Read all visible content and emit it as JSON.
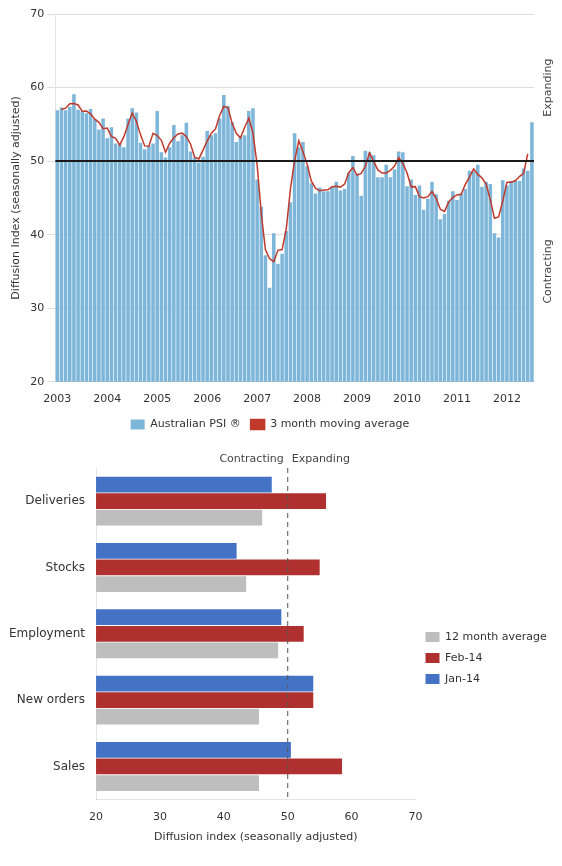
{
  "chart_data": [
    {
      "type": "bar",
      "ylabel": "Diffusion Index (seasonally adjusted)",
      "categories": [
        "2003",
        null,
        null,
        null,
        null,
        null,
        null,
        null,
        null,
        null,
        null,
        null,
        "2004",
        null,
        null,
        null,
        null,
        null,
        null,
        null,
        null,
        null,
        null,
        null,
        "2005",
        null,
        null,
        null,
        null,
        null,
        null,
        null,
        null,
        null,
        null,
        null,
        "2006",
        null,
        null,
        null,
        null,
        null,
        null,
        null,
        null,
        null,
        null,
        null,
        "2007",
        null,
        null,
        null,
        null,
        null,
        null,
        null,
        null,
        null,
        null,
        null,
        "2008",
        null,
        null,
        null,
        null,
        null,
        null,
        null,
        null,
        null,
        null,
        null,
        "2009",
        null,
        null,
        null,
        null,
        null,
        null,
        null,
        null,
        null,
        null,
        null,
        "2010",
        null,
        null,
        null,
        null,
        null,
        null,
        null,
        null,
        null,
        null,
        null,
        "2011",
        null,
        null,
        null,
        null,
        null,
        null,
        null,
        null,
        null,
        null,
        null,
        "2012",
        null,
        null,
        null,
        null,
        null,
        null
      ],
      "series": [
        {
          "name": "Australian PSI ®",
          "type": "bar",
          "color": "#7EB6D9",
          "values": [
            56.9,
            57.3,
            56.9,
            57.4,
            59.1,
            57.0,
            56.8,
            56.5,
            57.1,
            55.7,
            54.3,
            55.8,
            53.1,
            54.6,
            52.4,
            52.3,
            51.9,
            55.8,
            57.2,
            56.6,
            52.5,
            51.6,
            52.1,
            52.4,
            56.8,
            51.2,
            50.5,
            51.9,
            54.9,
            52.7,
            53.5,
            55.2,
            51.3,
            50.5,
            49.8,
            50.6,
            54.1,
            53.5,
            53.8,
            55.8,
            59.0,
            57.5,
            55.3,
            52.6,
            53.4,
            53.5,
            56.8,
            57.2,
            47.5,
            43.8,
            37.2,
            32.8,
            40.2,
            36.0,
            37.4,
            40.5,
            44.4,
            53.8,
            51.9,
            52.6,
            49.3,
            47.0,
            45.6,
            46.4,
            45.9,
            45.9,
            46.5,
            47.2,
            46.0,
            46.2,
            48.4,
            50.7,
            48.3,
            45.3,
            51.4,
            51.2,
            50.8,
            47.8,
            47.8,
            49.5,
            47.8,
            48.9,
            51.3,
            51.2,
            46.6,
            47.5,
            45.4,
            46.7,
            43.4,
            44.9,
            47.2,
            45.5,
            42.1,
            42.8,
            44.6,
            45.9,
            44.7,
            45.6,
            46.2,
            48.7,
            48.6,
            49.5,
            46.5,
            47.2,
            46.9,
            40.2,
            39.6,
            47.4,
            46.7,
            47.3,
            47.4,
            47.3,
            49.0,
            48.7,
            55.3
          ]
        },
        {
          "name": "3 month moving average",
          "type": "line",
          "color": "#C0392B",
          "values": [
            null,
            57.03,
            57.2,
            57.8,
            57.83,
            57.63,
            56.77,
            56.8,
            56.43,
            55.7,
            55.27,
            54.4,
            54.5,
            53.37,
            53.1,
            52.2,
            53.33,
            54.97,
            56.53,
            55.43,
            53.57,
            52.07,
            52.03,
            53.77,
            53.47,
            52.83,
            51.2,
            52.43,
            53.17,
            53.7,
            53.8,
            53.33,
            52.33,
            50.53,
            50.3,
            51.5,
            52.73,
            53.8,
            54.37,
            56.2,
            57.43,
            57.27,
            55.13,
            53.77,
            53.17,
            54.57,
            55.83,
            53.83,
            49.5,
            42.83,
            37.93,
            36.73,
            36.33,
            37.87,
            37.97,
            40.77,
            46.23,
            50.03,
            52.77,
            51.27,
            49.63,
            47.3,
            46.33,
            45.97,
            46.07,
            46.1,
            46.53,
            46.57,
            46.47,
            46.87,
            48.43,
            49.13,
            48.1,
            48.33,
            49.3,
            51.13,
            49.93,
            48.8,
            48.37,
            48.37,
            48.73,
            49.33,
            50.47,
            49.7,
            48.43,
            46.5,
            46.53,
            45.17,
            45.0,
            45.17,
            45.87,
            44.93,
            43.47,
            43.17,
            44.43,
            45.07,
            45.4,
            45.5,
            46.83,
            47.83,
            48.93,
            48.2,
            47.73,
            46.87,
            44.77,
            42.23,
            42.4,
            44.57,
            47.13,
            47.13,
            47.33,
            47.9,
            48.33,
            51.0,
            null
          ]
        }
      ],
      "reference_line": {
        "value": 50,
        "color": "#1A1A1A",
        "labels": [
          "Contracting",
          "Expanding"
        ]
      },
      "ylim": [
        20,
        70
      ],
      "yticks": [
        20,
        30,
        40,
        50,
        60,
        70
      ],
      "grid": "y",
      "legend": "bottom"
    },
    {
      "type": "bar",
      "orientation": "horizontal",
      "xlabel": "Diffusion index (seasonally adjusted)",
      "categories": [
        "Sales",
        "New orders",
        "Employment",
        "Stocks",
        "Deliveries"
      ],
      "series": [
        {
          "name": "12 month average",
          "color": "#BEBEBE",
          "values": [
            45.5,
            45.5,
            48.5,
            43.5,
            46.0
          ]
        },
        {
          "name": "Feb-14",
          "color": "#B03030",
          "values": [
            58.5,
            54.0,
            52.5,
            55.0,
            56.0
          ]
        },
        {
          "name": "Jan-14",
          "color": "#4472C4",
          "values": [
            50.5,
            54.0,
            49.0,
            42.0,
            47.5
          ]
        }
      ],
      "reference_line": {
        "value": 50,
        "color": "#555555",
        "line_style": "dashed",
        "labels": [
          "Contracting",
          "Expanding"
        ]
      },
      "xlim": [
        20,
        70
      ],
      "xticks": [
        20,
        30,
        40,
        50,
        60,
        70
      ],
      "grid": false,
      "legend": "right"
    }
  ]
}
